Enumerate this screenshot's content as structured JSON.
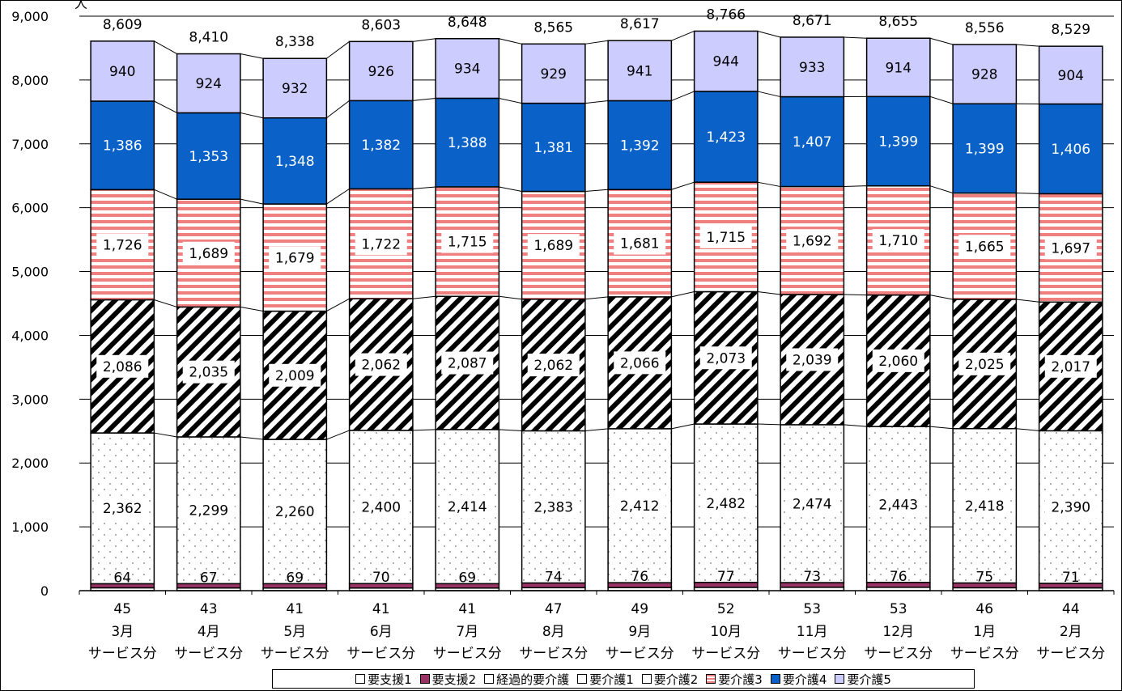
{
  "chart_data": {
    "type": "bar",
    "stacked": true,
    "title": "",
    "yunit": "人",
    "ylim": [
      0,
      9000
    ],
    "yticks": [
      0,
      1000,
      2000,
      3000,
      4000,
      5000,
      6000,
      7000,
      8000,
      9000
    ],
    "ytick_labels": [
      "0",
      "1,000",
      "2,000",
      "3,000",
      "4,000",
      "5,000",
      "6,000",
      "7,000",
      "8,000",
      "9,000"
    ],
    "grid": true,
    "legend_position": "bottom",
    "categories": [
      {
        "month": "3月",
        "sub": "サービス分"
      },
      {
        "month": "4月",
        "sub": "サービス分"
      },
      {
        "month": "5月",
        "sub": "サービス分"
      },
      {
        "month": "6月",
        "sub": "サービス分"
      },
      {
        "month": "7月",
        "sub": "サービス分"
      },
      {
        "month": "8月",
        "sub": "サービス分"
      },
      {
        "month": "9月",
        "sub": "サービス分"
      },
      {
        "month": "10月",
        "sub": "サービス分"
      },
      {
        "month": "11月",
        "sub": "サービス分"
      },
      {
        "month": "12月",
        "sub": "サービス分"
      },
      {
        "month": "1月",
        "sub": "サービス分"
      },
      {
        "month": "2月",
        "sub": "サービス分"
      }
    ],
    "series": [
      {
        "name": "要支援1",
        "values": [
          45,
          43,
          41,
          41,
          41,
          47,
          49,
          52,
          53,
          53,
          46,
          44
        ],
        "color": "#ffffff",
        "pattern": "solid",
        "labels": [
          "45",
          "43",
          "41",
          "41",
          "41",
          "47",
          "49",
          "52",
          "53",
          "53",
          "46",
          "44"
        ]
      },
      {
        "name": "要支援2",
        "values": [
          64,
          67,
          69,
          70,
          69,
          74,
          76,
          77,
          73,
          76,
          75,
          71
        ],
        "color": "#993366",
        "pattern": "solid",
        "labels": [
          "64",
          "67",
          "69",
          "70",
          "69",
          "74",
          "76",
          "77",
          "73",
          "76",
          "75",
          "71"
        ]
      },
      {
        "name": "経過的要介護",
        "values": [
          0,
          0,
          0,
          0,
          0,
          0,
          0,
          0,
          0,
          0,
          0,
          0
        ],
        "color": "#ffffff",
        "pattern": "solid"
      },
      {
        "name": "要介護1",
        "values": [
          2362,
          2299,
          2260,
          2400,
          2414,
          2383,
          2412,
          2482,
          2474,
          2443,
          2418,
          2390
        ],
        "color": "#ffffff",
        "pattern": "dots",
        "labels": [
          "2,362",
          "2,299",
          "2,260",
          "2,400",
          "2,414",
          "2,383",
          "2,412",
          "2,482",
          "2,474",
          "2,443",
          "2,418",
          "2,390"
        ]
      },
      {
        "name": "要介護2",
        "values": [
          2086,
          2035,
          2009,
          2062,
          2087,
          2062,
          2066,
          2073,
          2039,
          2060,
          2025,
          2017
        ],
        "color": "#000000",
        "pattern": "diagonal",
        "labels": [
          "2,086",
          "2,035",
          "2,009",
          "2,062",
          "2,087",
          "2,062",
          "2,066",
          "2,073",
          "2,039",
          "2,060",
          "2,025",
          "2,017"
        ]
      },
      {
        "name": "要介護3",
        "values": [
          1726,
          1689,
          1679,
          1722,
          1715,
          1689,
          1681,
          1715,
          1692,
          1710,
          1665,
          1697
        ],
        "color": "#f08080",
        "pattern": "hstripes",
        "labels": [
          "1,726",
          "1,689",
          "1,679",
          "1,722",
          "1,715",
          "1,689",
          "1,681",
          "1,715",
          "1,692",
          "1,710",
          "1,665",
          "1,697"
        ]
      },
      {
        "name": "要介護4",
        "values": [
          1386,
          1353,
          1348,
          1382,
          1388,
          1381,
          1392,
          1423,
          1407,
          1399,
          1399,
          1406
        ],
        "color": "#0a62c8",
        "pattern": "solid",
        "labels": [
          "1,386",
          "1,353",
          "1,348",
          "1,382",
          "1,388",
          "1,381",
          "1,392",
          "1,423",
          "1,407",
          "1,399",
          "1,399",
          "1,406"
        ]
      },
      {
        "name": "要介護5",
        "values": [
          940,
          924,
          932,
          926,
          934,
          929,
          941,
          944,
          933,
          914,
          928,
          904
        ],
        "color": "#ccccff",
        "pattern": "solid",
        "labels": [
          "940",
          "924",
          "932",
          "926",
          "934",
          "929",
          "941",
          "944",
          "933",
          "914",
          "928",
          "904"
        ]
      }
    ],
    "totals": [
      "8,609",
      "8,410",
      "8,338",
      "8,603",
      "8,648",
      "8,565",
      "8,617",
      "8,766",
      "8,671",
      "8,655",
      "8,556",
      "8,529"
    ]
  }
}
